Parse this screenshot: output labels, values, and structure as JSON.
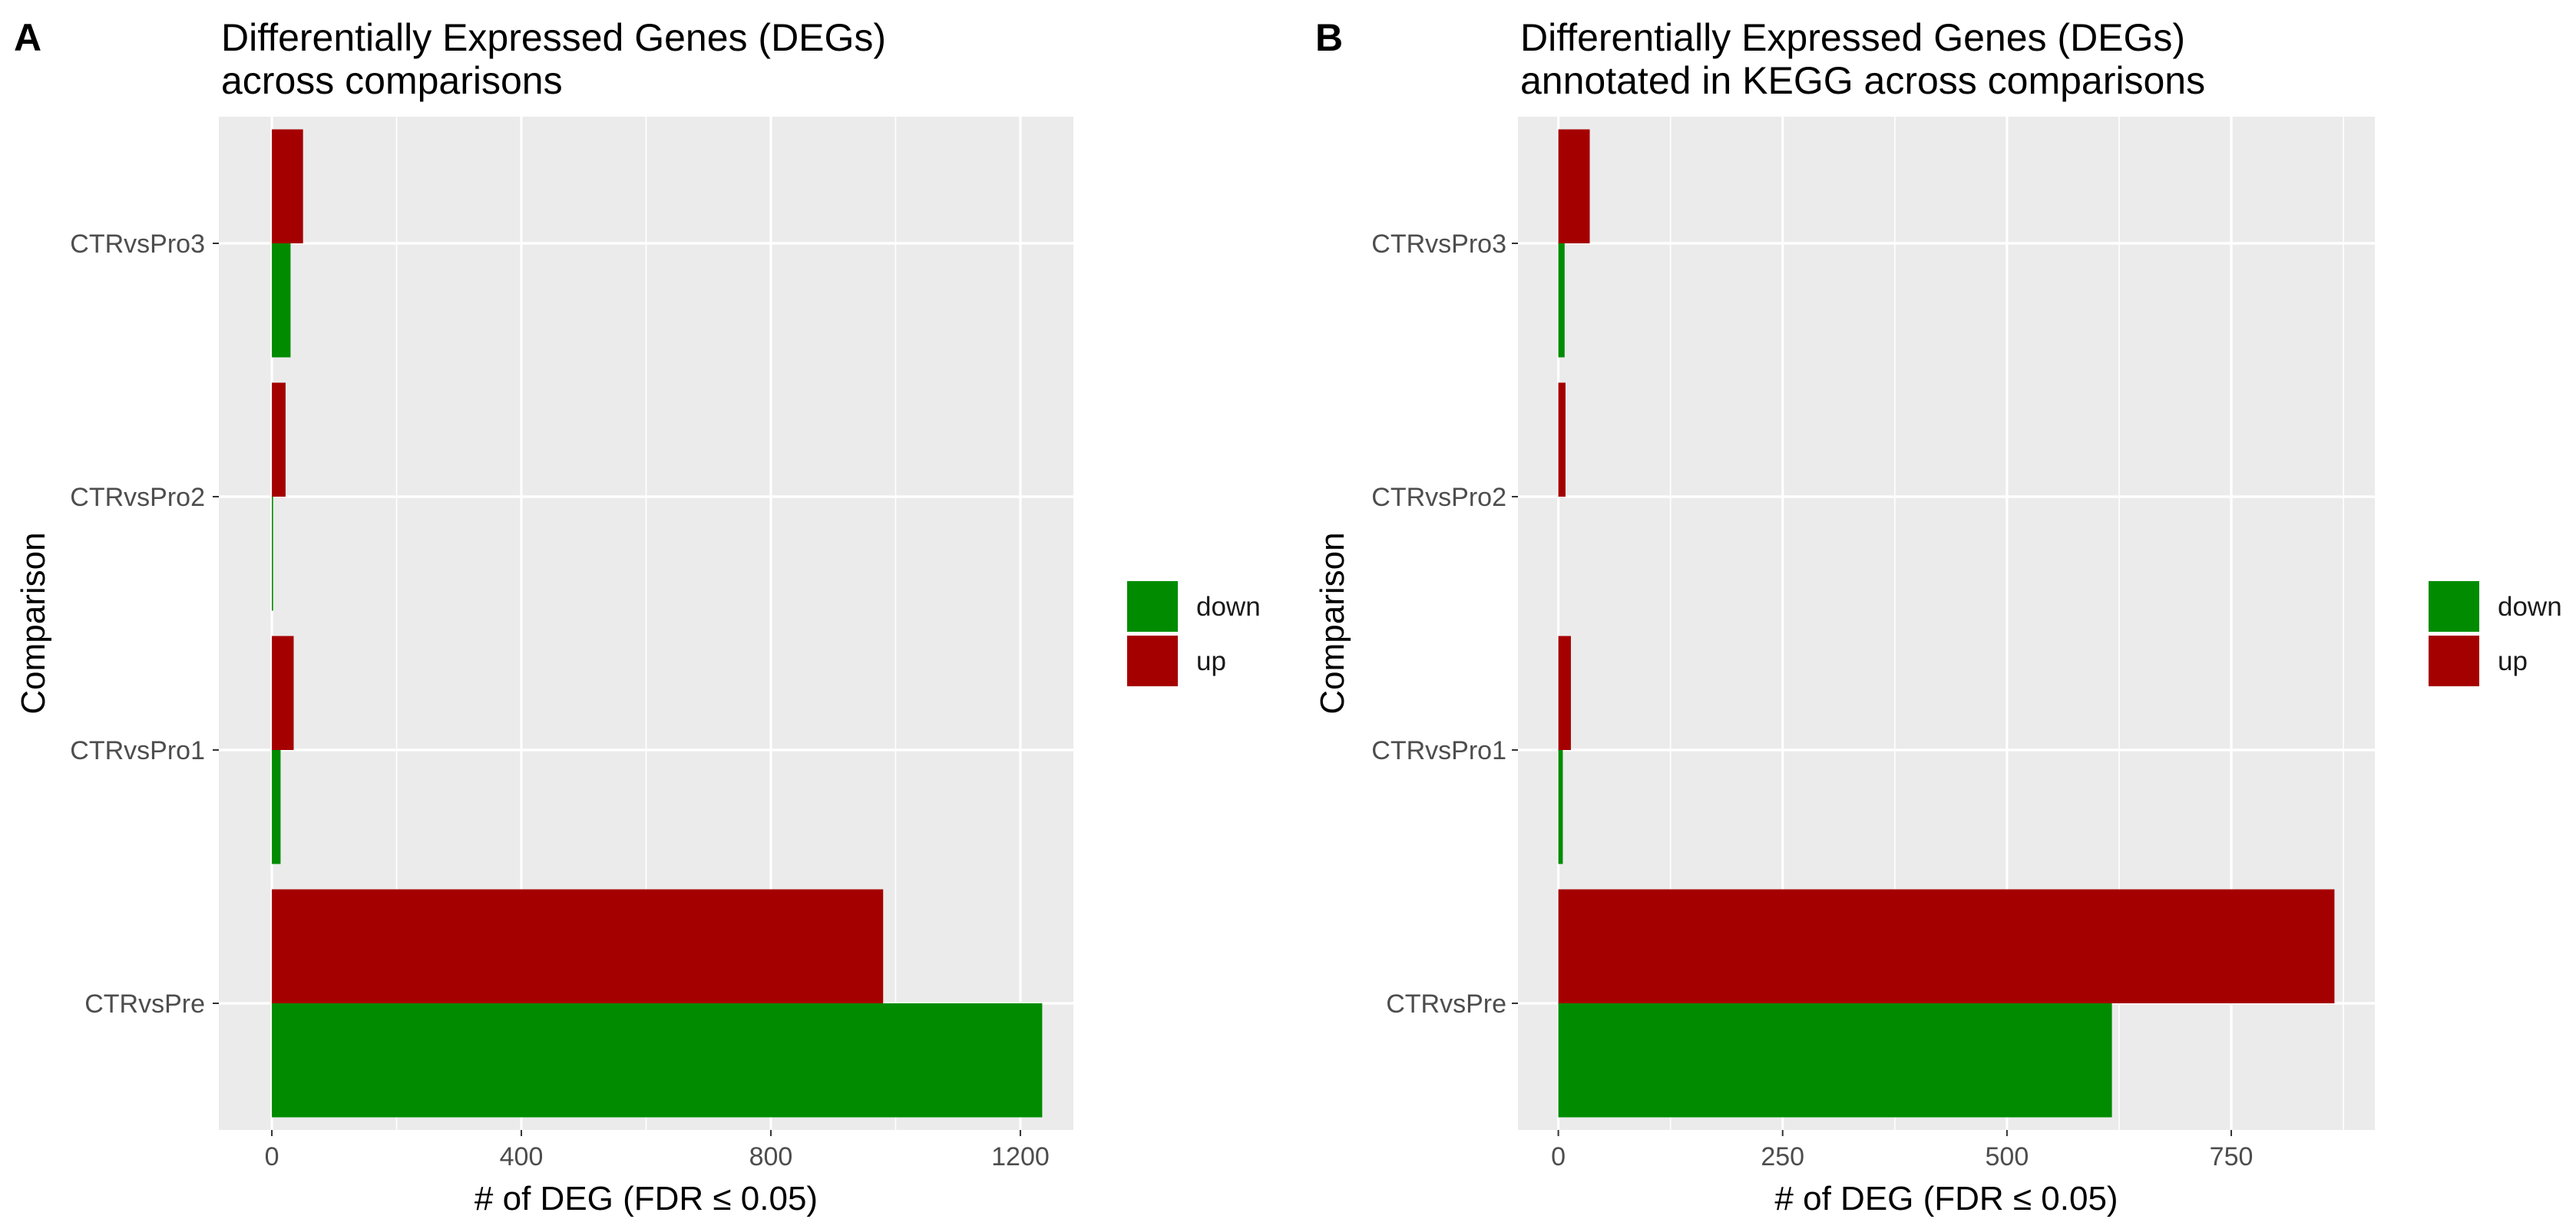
{
  "chart_data": [
    {
      "type": "bar",
      "orientation": "horizontal",
      "panel_label": "A",
      "title_lines": [
        "Differentially Expressed Genes (DEGs)",
        "across comparisons"
      ],
      "xlabel": "# of DEG (FDR ≤ 0.05)",
      "ylabel": "Comparison",
      "categories": [
        "CTRvsPro3",
        "CTRvsPro2",
        "CTRvsPro1",
        "CTRvsPre"
      ],
      "xlim": [
        -85,
        1285
      ],
      "xticks": [
        0,
        400,
        800,
        1200
      ],
      "series": [
        {
          "name": "down",
          "color": "#008B00",
          "values": [
            30,
            2,
            14,
            1235
          ]
        },
        {
          "name": "up",
          "color": "#A50000",
          "values": [
            50,
            22,
            35,
            980
          ]
        }
      ],
      "legend": {
        "position": "right",
        "entries": [
          "down",
          "up"
        ]
      },
      "grid": true
    },
    {
      "type": "bar",
      "orientation": "horizontal",
      "panel_label": "B",
      "title_lines": [
        "Differentially Expressed Genes (DEGs)",
        "annotated in KEGG across comparisons"
      ],
      "xlabel": "# of DEG (FDR ≤ 0.05)",
      "ylabel": "Comparison",
      "categories": [
        "CTRvsPro3",
        "CTRvsPro2",
        "CTRvsPro1",
        "CTRvsPre"
      ],
      "xlim": [
        -45,
        910
      ],
      "xticks": [
        0,
        250,
        500,
        750
      ],
      "series": [
        {
          "name": "down",
          "color": "#008B00",
          "values": [
            7,
            0,
            5,
            617
          ]
        },
        {
          "name": "up",
          "color": "#A50000",
          "values": [
            35,
            8,
            14,
            865
          ]
        }
      ],
      "legend": {
        "position": "right",
        "entries": [
          "down",
          "up"
        ]
      },
      "grid": true
    }
  ]
}
